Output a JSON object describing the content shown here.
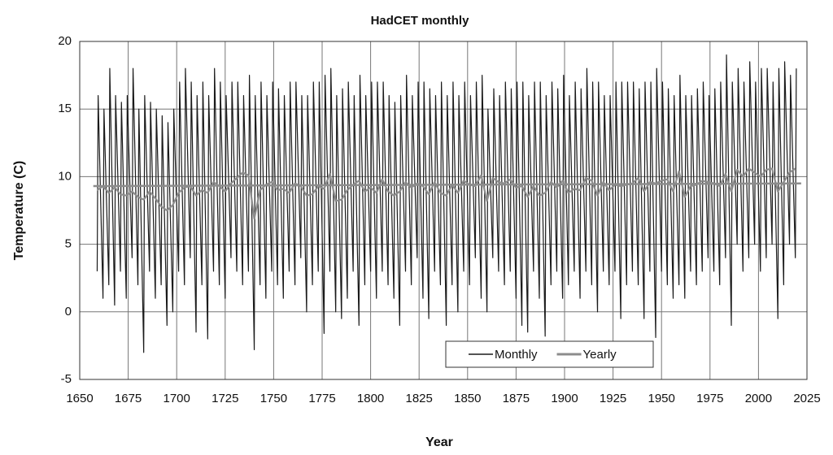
{
  "chart_data": {
    "type": "line",
    "title": "HadCET monthly",
    "xlabel": "Year",
    "ylabel": "Temperature (C)",
    "xlim": [
      1650,
      2025
    ],
    "xticks": [
      1650,
      1675,
      1700,
      1725,
      1750,
      1775,
      1800,
      1825,
      1850,
      1875,
      1900,
      1925,
      1950,
      1975,
      2000,
      2025
    ],
    "ylim": [
      -5,
      20
    ],
    "yticks": [
      -5,
      0,
      5,
      10,
      15,
      20
    ],
    "grid": true,
    "legend": "lower right",
    "series": [
      {
        "name": "Monthly",
        "color": "#1a1a1a",
        "x": [
          1659,
          1659.5,
          1662,
          1662.5,
          1665,
          1665.5,
          1668,
          1668.5,
          1671,
          1671.5,
          1674,
          1674.5,
          1677,
          1677.5,
          1680,
          1680.5,
          1683,
          1683.5,
          1686,
          1686.5,
          1689,
          1689.5,
          1692,
          1692.5,
          1695,
          1695.5,
          1698,
          1698.5,
          1701,
          1701.5,
          1704,
          1704.5,
          1707,
          1707.5,
          1710,
          1710.5,
          1713,
          1713.5,
          1716,
          1716.5,
          1719,
          1719.5,
          1722,
          1722.5,
          1725,
          1725.5,
          1728,
          1728.5,
          1731,
          1731.5,
          1734,
          1734.5,
          1737,
          1737.5,
          1740,
          1740.5,
          1743,
          1743.5,
          1746,
          1746.5,
          1749,
          1749.5,
          1752,
          1752.5,
          1755,
          1755.5,
          1758,
          1758.5,
          1761,
          1761.5,
          1764,
          1764.5,
          1767,
          1767.5,
          1770,
          1770.5,
          1773,
          1773.5,
          1776,
          1776.5,
          1779,
          1779.5,
          1782,
          1782.5,
          1785,
          1785.5,
          1788,
          1788.5,
          1791,
          1791.5,
          1794,
          1794.5,
          1797,
          1797.5,
          1800,
          1800.5,
          1803,
          1803.5,
          1806,
          1806.5,
          1809,
          1809.5,
          1812,
          1812.5,
          1815,
          1815.5,
          1818,
          1818.5,
          1821,
          1821.5,
          1824,
          1824.5,
          1827,
          1827.5,
          1830,
          1830.5,
          1833,
          1833.5,
          1836,
          1836.5,
          1839,
          1839.5,
          1842,
          1842.5,
          1845,
          1845.5,
          1848,
          1848.5,
          1851,
          1851.5,
          1854,
          1854.5,
          1857,
          1857.5,
          1860,
          1860.5,
          1863,
          1863.5,
          1866,
          1866.5,
          1869,
          1869.5,
          1872,
          1872.5,
          1875,
          1875.5,
          1878,
          1878.5,
          1881,
          1881.5,
          1884,
          1884.5,
          1887,
          1887.5,
          1890,
          1890.5,
          1893,
          1893.5,
          1896,
          1896.5,
          1899,
          1899.5,
          1902,
          1902.5,
          1905,
          1905.5,
          1908,
          1908.5,
          1911,
          1911.5,
          1914,
          1914.5,
          1917,
          1917.5,
          1920,
          1920.5,
          1923,
          1923.5,
          1926,
          1926.5,
          1929,
          1929.5,
          1932,
          1932.5,
          1935,
          1935.5,
          1938,
          1938.5,
          1941,
          1941.5,
          1944,
          1944.5,
          1947,
          1947.5,
          1950,
          1950.5,
          1953,
          1953.5,
          1956,
          1956.5,
          1959,
          1959.5,
          1962,
          1962.5,
          1965,
          1965.5,
          1968,
          1968.5,
          1971,
          1971.5,
          1974,
          1974.5,
          1977,
          1977.5,
          1980,
          1980.5,
          1983,
          1983.5,
          1986,
          1986.5,
          1989,
          1989.5,
          1992,
          1992.5,
          1995,
          1995.5,
          1998,
          1998.5,
          2001,
          2001.5,
          2004,
          2004.5,
          2007,
          2007.5,
          2010,
          2010.5,
          2013,
          2013.5,
          2016,
          2016.5,
          2019,
          2019.5
        ],
        "values": [
          3,
          16,
          1,
          15,
          2,
          18,
          0.5,
          16,
          3,
          15.5,
          1,
          16,
          4,
          18,
          2,
          15,
          -3,
          16,
          3,
          15.5,
          1,
          15,
          2,
          14.5,
          -1,
          14,
          0,
          15,
          3,
          17,
          2,
          18,
          4,
          17,
          -1.5,
          16,
          2,
          17,
          -2,
          16,
          3,
          18,
          2,
          17,
          1,
          16,
          4,
          17,
          3,
          17,
          2,
          16,
          3,
          17.5,
          -2.8,
          16,
          2,
          17,
          1,
          16,
          3,
          17,
          2,
          16.5,
          1,
          16,
          3,
          17,
          2,
          17,
          4,
          16,
          0,
          16,
          2,
          17,
          3,
          17,
          -1.6,
          17.5,
          3,
          18,
          0,
          16,
          -0.5,
          16.5,
          1,
          17,
          3,
          16,
          -1,
          17.5,
          2,
          16,
          3,
          17,
          1,
          17,
          3,
          17,
          2,
          16,
          1,
          15.5,
          -1,
          16,
          3,
          17.5,
          2,
          16,
          4,
          17,
          1,
          17,
          -0.5,
          16.5,
          3,
          16,
          2,
          17,
          -1,
          16,
          2,
          17,
          0,
          16,
          3,
          17,
          2,
          16,
          4,
          17,
          1,
          17.5,
          0,
          15,
          4,
          16.5,
          3,
          16,
          2,
          17,
          3,
          16.5,
          1,
          17,
          -1,
          17,
          -1.5,
          16,
          3,
          17,
          1,
          17,
          -1.8,
          16,
          2,
          17,
          3,
          16.5,
          1,
          17.5,
          2,
          16,
          3,
          17,
          1,
          16.5,
          3,
          18,
          2,
          17,
          0,
          17,
          3,
          16,
          2,
          16,
          3,
          17,
          -0.5,
          17,
          2,
          17,
          3,
          17,
          2,
          16.5,
          -0.5,
          17,
          3,
          17,
          -1.9,
          18,
          3,
          17,
          2,
          16.5,
          1,
          16,
          2,
          17.5,
          1,
          16,
          3,
          16,
          2,
          16.5,
          3,
          17,
          4,
          16,
          3,
          16.5,
          2,
          17,
          4,
          19,
          -1,
          17,
          5,
          18,
          3,
          17,
          4,
          18.5,
          5,
          17,
          3,
          18,
          4,
          18,
          5,
          17,
          -0.5,
          18,
          2,
          18.5,
          5,
          17.5,
          4,
          18
        ]
      },
      {
        "name": "Yearly",
        "color": "#8c8c8c",
        "x": [
          1659,
          1662,
          1665,
          1668,
          1671,
          1674,
          1677,
          1680,
          1683,
          1686,
          1689,
          1692,
          1695,
          1698,
          1701,
          1704,
          1707,
          1710,
          1713,
          1716,
          1719,
          1722,
          1725,
          1728,
          1731,
          1734,
          1737,
          1740,
          1743,
          1746,
          1749,
          1752,
          1755,
          1758,
          1761,
          1764,
          1767,
          1770,
          1773,
          1776,
          1779,
          1782,
          1785,
          1788,
          1791,
          1794,
          1797,
          1800,
          1803,
          1806,
          1809,
          1812,
          1815,
          1818,
          1821,
          1824,
          1827,
          1830,
          1833,
          1836,
          1839,
          1842,
          1845,
          1848,
          1851,
          1854,
          1857,
          1860,
          1863,
          1866,
          1869,
          1872,
          1875,
          1878,
          1881,
          1884,
          1887,
          1890,
          1893,
          1896,
          1899,
          1902,
          1905,
          1908,
          1911,
          1914,
          1917,
          1920,
          1923,
          1926,
          1929,
          1932,
          1935,
          1938,
          1941,
          1944,
          1947,
          1950,
          1953,
          1956,
          1959,
          1962,
          1965,
          1968,
          1971,
          1974,
          1977,
          1980,
          1983,
          1986,
          1989,
          1992,
          1995,
          1998,
          2001,
          2004,
          2007,
          2010,
          2013,
          2016,
          2019
        ],
        "values": [
          9.0,
          9.3,
          8.8,
          9.2,
          8.7,
          8.6,
          8.9,
          8.5,
          8.3,
          8.9,
          8.4,
          7.8,
          7.5,
          7.9,
          8.8,
          9.2,
          9.3,
          8.6,
          9.0,
          8.8,
          9.6,
          9.3,
          8.9,
          9.5,
          9.9,
          10.3,
          10.1,
          6.9,
          9.0,
          9.4,
          9.6,
          9.0,
          9.1,
          8.8,
          9.5,
          9.3,
          8.6,
          8.7,
          9.3,
          9.1,
          10.2,
          8.2,
          8.3,
          9.0,
          9.4,
          9.7,
          8.9,
          9.2,
          8.8,
          9.8,
          8.9,
          8.6,
          8.9,
          9.6,
          9.2,
          9.5,
          9.3,
          8.7,
          9.6,
          8.8,
          8.6,
          9.4,
          8.8,
          9.7,
          9.4,
          9.3,
          10.1,
          8.2,
          9.9,
          9.6,
          9.5,
          9.8,
          9.2,
          9.3,
          8.5,
          9.3,
          8.6,
          8.8,
          9.6,
          9.2,
          9.7,
          8.8,
          9.1,
          9.0,
          9.9,
          9.7,
          8.6,
          9.6,
          9.0,
          9.4,
          9.3,
          9.4,
          9.5,
          9.9,
          8.9,
          9.6,
          9.5,
          9.7,
          9.8,
          8.9,
          10.4,
          8.5,
          9.3,
          9.4,
          9.7,
          9.6,
          9.5,
          9.3,
          10.2,
          8.9,
          10.5,
          10.0,
          10.6,
          10.3,
          10.0,
          10.5,
          10.6,
          8.9,
          9.6,
          10.3,
          10.6
        ]
      }
    ],
    "trend_line": {
      "color": "#8c8c8c",
      "x": [
        1657,
        2022
      ],
      "values": [
        9.3,
        9.5
      ]
    }
  }
}
